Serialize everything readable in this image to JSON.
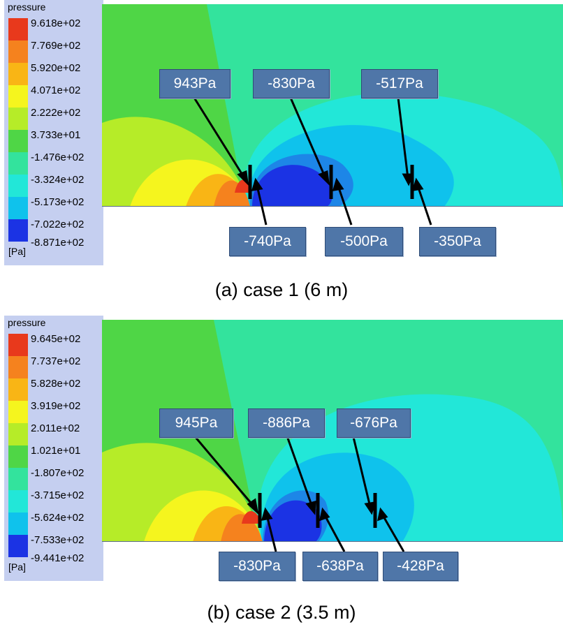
{
  "panels": [
    {
      "legend": {
        "title": "pressure",
        "unit": "[Pa]",
        "ticks": [
          "9.618e+02",
          "7.769e+02",
          "5.920e+02",
          "4.071e+02",
          "2.222e+02",
          "3.733e+01",
          "-1.476e+02",
          "-3.324e+02",
          "-5.173e+02",
          "-7.022e+02",
          "-8.871e+02"
        ]
      },
      "callouts_top": [
        "943Pa",
        "-830Pa",
        "-517Pa"
      ],
      "callouts_bottom": [
        "-740Pa",
        "-500Pa",
        "-350Pa"
      ],
      "caption": "(a) case 1 (6 m)"
    },
    {
      "legend": {
        "title": "pressure",
        "unit": "[Pa]",
        "ticks": [
          "9.645e+02",
          "7.737e+02",
          "5.828e+02",
          "3.919e+02",
          "2.011e+02",
          "1.021e+01",
          "-1.807e+02",
          "-3.715e+02",
          "-5.624e+02",
          "-7.533e+02",
          "-9.441e+02"
        ]
      },
      "callouts_top": [
        "945Pa",
        "-886Pa",
        "-676Pa"
      ],
      "callouts_bottom": [
        "-830Pa",
        "-638Pa",
        "-428Pa"
      ],
      "caption": "(b) case 2 (3.5 m)"
    }
  ],
  "colors": {
    "scale": [
      "#e8391c",
      "#f5821e",
      "#f9b515",
      "#f5f51e",
      "#b6ec28",
      "#4fd646",
      "#33e39d",
      "#22e7d8",
      "#0fc2ec",
      "#1d86e7",
      "#1b33e4"
    ],
    "legend_bg": "#c5cff0",
    "callout_bg": "#4f76a8"
  }
}
